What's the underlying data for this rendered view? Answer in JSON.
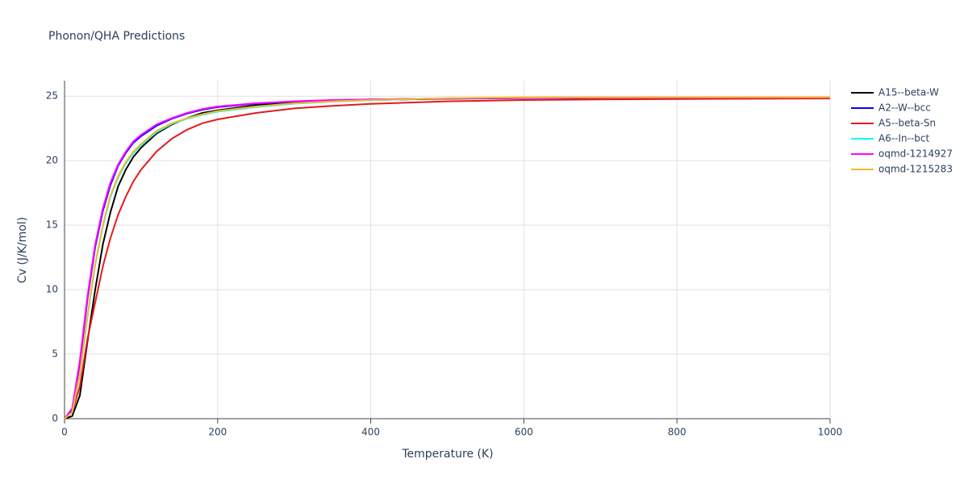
{
  "chart_data": {
    "type": "line",
    "title": "Phonon/QHA Predictions",
    "x_label": "Temperature (K)",
    "y_label": "Cv (J/K/mol)",
    "x": [
      0,
      10,
      20,
      30,
      40,
      50,
      60,
      70,
      80,
      90,
      100,
      120,
      140,
      160,
      180,
      200,
      250,
      300,
      350,
      400,
      500,
      600,
      700,
      800,
      900,
      1000
    ],
    "series": [
      {
        "name": "A15--beta-W",
        "color": "#000000",
        "values": [
          0,
          0.2,
          1.8,
          6,
          10,
          13.5,
          16,
          18,
          19.3,
          20.3,
          21,
          22.1,
          22.8,
          23.3,
          23.7,
          23.9,
          24.3,
          24.5,
          24.65,
          24.7,
          24.8,
          24.85,
          24.87,
          24.88,
          24.9,
          24.9
        ]
      },
      {
        "name": "A2--W--bcc",
        "color": "#0000ff",
        "values": [
          0,
          0.7,
          4.3,
          9.3,
          13.3,
          16.1,
          18.1,
          19.6,
          20.6,
          21.4,
          21.9,
          22.7,
          23.25,
          23.65,
          23.95,
          24.15,
          24.42,
          24.58,
          24.68,
          24.74,
          24.82,
          24.86,
          24.88,
          24.89,
          24.9,
          24.9
        ]
      },
      {
        "name": "A5--beta-Sn",
        "color": "#e41a1c",
        "values": [
          0,
          0.5,
          2.5,
          6.2,
          9,
          11.8,
          14,
          15.8,
          17.2,
          18.4,
          19.3,
          20.7,
          21.7,
          22.4,
          22.9,
          23.2,
          23.7,
          24.05,
          24.25,
          24.4,
          24.6,
          24.7,
          24.75,
          24.78,
          24.8,
          24.82
        ]
      },
      {
        "name": "A6--In--bct",
        "color": "#00ffff",
        "values": [
          0,
          0.5,
          3.4,
          7.9,
          11.9,
          14.9,
          17.2,
          18.7,
          19.8,
          20.6,
          21.2,
          22.2,
          22.85,
          23.25,
          23.55,
          23.8,
          24.15,
          24.42,
          24.58,
          24.68,
          24.84,
          24.89,
          24.9,
          24.91,
          24.92,
          24.92
        ]
      },
      {
        "name": "oqmd-1214927",
        "color": "#ff00ff",
        "values": [
          0,
          0.8,
          4.5,
          9.5,
          13.5,
          16.3,
          18.3,
          19.7,
          20.7,
          21.5,
          22,
          22.8,
          23.3,
          23.7,
          24,
          24.2,
          24.45,
          24.6,
          24.7,
          24.75,
          24.82,
          24.86,
          24.88,
          24.89,
          24.9,
          24.9
        ]
      },
      {
        "name": "oqmd-1215283",
        "color": "#f5b82e",
        "values": [
          0,
          0.5,
          3.5,
          8,
          12,
          15,
          17.3,
          18.8,
          19.9,
          20.7,
          21.3,
          22.3,
          22.9,
          23.3,
          23.6,
          23.85,
          24.2,
          24.45,
          24.6,
          24.7,
          24.85,
          24.9,
          24.91,
          24.92,
          24.92,
          24.92
        ]
      }
    ],
    "xlim": [
      0,
      1000
    ],
    "xticks": [
      0,
      200,
      400,
      600,
      800,
      1000
    ],
    "ylim": [
      0,
      26.2
    ],
    "yticks": [
      0,
      5,
      10,
      15,
      20,
      25
    ],
    "grid": true
  }
}
